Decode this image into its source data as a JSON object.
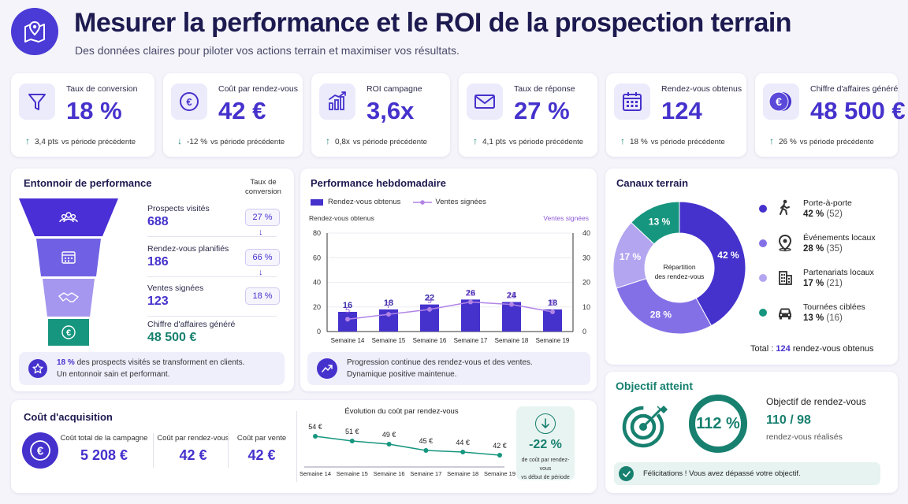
{
  "header": {
    "title": "Mesurer la performance et le ROI de la prospection terrain",
    "subtitle": "Des données claires pour piloter vos actions terrain et maximiser vos résultats."
  },
  "kpis": [
    {
      "label": "Taux de conversion",
      "value": "18 %",
      "delta": "3,4 pts",
      "direction": "up",
      "suffix": "vs période précédente",
      "icon": "funnel-icon"
    },
    {
      "label": "Coût par rendez-vous",
      "value": "42 €",
      "delta": "-12 %",
      "direction": "down",
      "suffix": "vs période précédente",
      "icon": "euro-icon"
    },
    {
      "label": "ROI campagne",
      "value": "3,6x",
      "delta": "0,8x",
      "direction": "up",
      "suffix": "vs période précédente",
      "icon": "chart-bars-icon"
    },
    {
      "label": "Taux de réponse",
      "value": "27 %",
      "delta": "4,1 pts",
      "direction": "up",
      "suffix": "vs période précédente",
      "icon": "envelope-icon"
    },
    {
      "label": "Rendez-vous obtenus",
      "value": "124",
      "delta": "18 %",
      "direction": "up",
      "suffix": "vs période précédente",
      "icon": "calendar-icon"
    },
    {
      "label": "Chiffre d'affaires généré",
      "value": "48 500 €",
      "delta": "26 %",
      "direction": "up",
      "suffix": "vs période précédente",
      "icon": "euro-coin-icon"
    }
  ],
  "funnel": {
    "title": "Entonnoir de performance",
    "conv_header": "Taux de conversion",
    "stages": [
      {
        "label": "Prospects visités",
        "value": "688",
        "color": "#4a2fd6"
      },
      {
        "label": "Rendez-vous planifiés",
        "value": "186",
        "color": "#7061e4"
      },
      {
        "label": "Ventes signées",
        "value": "123",
        "color": "#a596ef"
      },
      {
        "label": "Chiffre d'affaires généré",
        "value": "48 500 €",
        "color": "#17967f"
      }
    ],
    "rates": [
      "27 %",
      "66 %",
      "18 %"
    ],
    "note_bold": "18 %",
    "note_line1": " des prospects visités se transforment en clients.",
    "note_line2": "Un entonnoir sain et performant."
  },
  "weekly": {
    "title": "Performance hebdomadaire",
    "legend_bars": "Rendez-vous obtenus",
    "legend_line": "Ventes signées",
    "left_axis_title": "Rendez-vous obtenus",
    "right_axis_title": "Ventes signées",
    "note_line1": "Progression continue des rendez-vous et des ventes.",
    "note_line2": "Dynamique positive maintenue."
  },
  "chart_data": [
    {
      "type": "bar",
      "title": "Performance hebdomadaire",
      "categories": [
        "Semaine 14",
        "Semaine 15",
        "Semaine 16",
        "Semaine 17",
        "Semaine 18",
        "Semaine 19"
      ],
      "series": [
        {
          "name": "Rendez-vous obtenus",
          "type": "bar",
          "axis": "left",
          "values": [
            16,
            18,
            22,
            26,
            24,
            18
          ]
        },
        {
          "name": "Ventes signées",
          "type": "line",
          "axis": "right",
          "values": [
            5,
            7,
            9,
            12,
            11,
            8
          ]
        }
      ],
      "ylim_left": [
        0,
        80
      ],
      "yticks_left": [
        0,
        20,
        40,
        60,
        80
      ],
      "ylim_right": [
        0,
        40
      ],
      "yticks_right": [
        0,
        10,
        20,
        30,
        40
      ],
      "colors": {
        "bars": "#4532cc",
        "line": "#b184e6"
      }
    },
    {
      "type": "pie",
      "title": "Canaux terrain",
      "center_label": "Répartition des rendez-vous",
      "slices": [
        {
          "name": "Porte-à-porte",
          "pct": 42,
          "count": 52,
          "color": "#4532cc",
          "icon": "walking-person-icon"
        },
        {
          "name": "Événements locaux",
          "pct": 28,
          "count": 35,
          "color": "#8470e6",
          "icon": "location-pin-icon"
        },
        {
          "name": "Partenariats locaux",
          "pct": 17,
          "count": 21,
          "color": "#b3a5f0",
          "icon": "building-icon"
        },
        {
          "name": "Tournées ciblées",
          "pct": 13,
          "count": 16,
          "color": "#17967f",
          "icon": "car-icon"
        }
      ]
    },
    {
      "type": "line",
      "title": "Évolution du coût par rendez-vous",
      "categories": [
        "Semaine 14",
        "Semaine 15",
        "Semaine 16",
        "Semaine 17",
        "Semaine 18",
        "Semaine 19"
      ],
      "values": [
        54,
        51,
        49,
        45,
        44,
        42
      ],
      "labels": [
        "54 €",
        "51 €",
        "49 €",
        "45 €",
        "44 €",
        "42 €"
      ],
      "color": "#17967f"
    }
  ],
  "channels": {
    "title": "Canaux terrain",
    "center_line1": "Répartition",
    "center_line2": "des rendez-vous",
    "total_prefix": "Total : ",
    "total_value": "124",
    "total_suffix": " rendez-vous obtenus"
  },
  "acquisition": {
    "title": "Coût d'acquisition",
    "items": [
      {
        "label": "Coût total de la campagne",
        "value": "5 208 €"
      },
      {
        "label": "Coût par rendez-vous",
        "value": "42 €"
      },
      {
        "label": "Coût par vente",
        "value": "42 €"
      }
    ],
    "chart_title": "Évolution du coût par rendez-vous",
    "change_value": "-22 %",
    "change_line1": "de coût par rendez-vous",
    "change_line2": "vs début de période"
  },
  "objective": {
    "title": "Objectif atteint",
    "ring_value": "112 %",
    "ring_progress": 1.0,
    "heading": "Objectif de rendez-vous",
    "ratio": "110 / 98",
    "caption": "rendez-vous réalisés",
    "banner": "Félicitations ! Vous avez dépassé votre objectif."
  }
}
